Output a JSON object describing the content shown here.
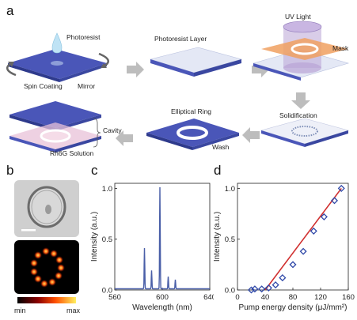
{
  "panel_a": {
    "letter": "a",
    "labels": {
      "photoresist": "Photoresist",
      "spin_coating": "Spin Coating",
      "mirror": "Mirror",
      "photoresist_layer": "Photoresist Layer",
      "uv_light": "UV Light",
      "mask": "Mask",
      "solidification": "Solidification",
      "wash": "Wash",
      "elliptical_ring": "Elliptical Ring",
      "cavity": "Cavity",
      "rh6g_solution": "Rh6G Solution"
    },
    "colors": {
      "mirror_top": "#4a56b8",
      "mirror_side": "#2e3a8c",
      "layer_top": "#e4e8f5",
      "mask_orange": "#f0a060",
      "uv_purple": "#b9a4d6",
      "arrow_gray": "#bdbdbd",
      "cavity_pink": "#e8c2d8"
    }
  },
  "panel_b": {
    "letter": "b",
    "colorbar_min": "min",
    "colorbar_max": "max"
  },
  "chart_data": [
    {
      "panel": "c",
      "type": "line",
      "xlabel": "Wavelength (nm)",
      "ylabel": "Intensity (a.u.)",
      "xlim": [
        560,
        640
      ],
      "ylim": [
        0,
        1.05
      ],
      "xticks": [
        "560",
        "600",
        "640"
      ],
      "yticks": [
        "0.0",
        "0.5",
        "1.0"
      ],
      "color": "#4a5fa8",
      "peaks": [
        {
          "x": 585,
          "y": 0.4
        },
        {
          "x": 591,
          "y": 0.18
        },
        {
          "x": 598,
          "y": 1.0
        },
        {
          "x": 605,
          "y": 0.12
        },
        {
          "x": 611,
          "y": 0.09
        }
      ]
    },
    {
      "panel": "d",
      "type": "scatter",
      "xlabel": "Pump energy density (μJ/mm²)",
      "ylabel": "Intensity (a.u.)",
      "xlim": [
        0,
        160
      ],
      "ylim": [
        0,
        1.05
      ],
      "xticks": [
        "0",
        "40",
        "80",
        "120",
        "160"
      ],
      "yticks": [
        "0.0",
        "0.5",
        "1.0"
      ],
      "marker_color": "#2f48a8",
      "fit_color": "#d03030",
      "points": [
        {
          "x": 20,
          "y": 0.0
        },
        {
          "x": 25,
          "y": 0.01
        },
        {
          "x": 35,
          "y": 0.01
        },
        {
          "x": 45,
          "y": 0.02
        },
        {
          "x": 55,
          "y": 0.05
        },
        {
          "x": 65,
          "y": 0.12
        },
        {
          "x": 80,
          "y": 0.25
        },
        {
          "x": 95,
          "y": 0.38
        },
        {
          "x": 110,
          "y": 0.58
        },
        {
          "x": 125,
          "y": 0.72
        },
        {
          "x": 140,
          "y": 0.88
        },
        {
          "x": 150,
          "y": 1.0
        }
      ],
      "fit": [
        [
          40,
          0.0
        ],
        [
          150,
          1.0
        ]
      ]
    }
  ],
  "panel_c": {
    "letter": "c"
  },
  "panel_d": {
    "letter": "d"
  }
}
